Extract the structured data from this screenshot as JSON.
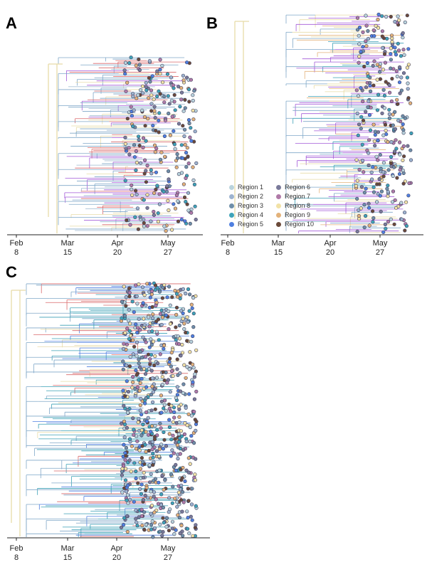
{
  "panels": [
    {
      "id": "A",
      "label": "A"
    },
    {
      "id": "B",
      "label": "B"
    },
    {
      "id": "C",
      "label": "C"
    }
  ],
  "axis_ticks": [
    {
      "month": "Feb",
      "day": "8"
    },
    {
      "month": "Mar",
      "day": "15"
    },
    {
      "month": "Apr",
      "day": "20"
    },
    {
      "month": "May",
      "day": "27"
    }
  ],
  "legend": [
    {
      "label": "Region  1",
      "color": "#b9d3dc"
    },
    {
      "label": "Region  2",
      "color": "#9db3cf"
    },
    {
      "label": "Region  3",
      "color": "#6f8fa8"
    },
    {
      "label": "Region  4",
      "color": "#3ea3b8"
    },
    {
      "label": "Region  5",
      "color": "#4f7fe0"
    },
    {
      "label": "Region  6",
      "color": "#7a7a9a"
    },
    {
      "label": "Region  7",
      "color": "#b07aa8"
    },
    {
      "label": "Region  8",
      "color": "#f2e2a6"
    },
    {
      "label": "Region  9",
      "color": "#e3b27a"
    },
    {
      "label": "Region  10",
      "color": "#6b4a3a"
    }
  ],
  "colors": {
    "trunk": "#e7dba7",
    "branch_blue": "#7fa7c8",
    "branch_teal": "#3a9fb5",
    "branch_red": "#d9686a",
    "branch_purple": "#a35ad8",
    "tip_outline": "#3d3d5a",
    "axis": "#222222"
  }
}
